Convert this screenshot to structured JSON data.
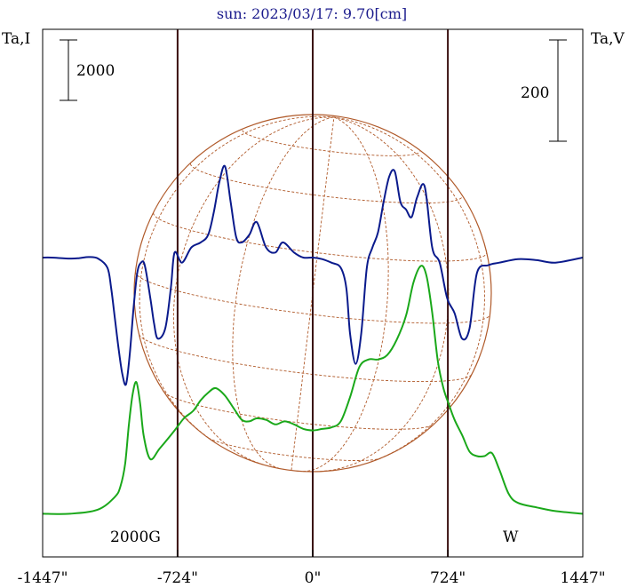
{
  "chart_data": {
    "type": "line",
    "title": "sun: 2023/03/17: 9.70[cm]",
    "left_axis_label": "Ta,I",
    "right_axis_label": "Ta,V",
    "left_scale_bar": "2000",
    "right_scale_bar": "200",
    "annotations": {
      "bottom_left": "2000G",
      "bottom_right": "W"
    },
    "x_ticks": [
      {
        "value": -1447,
        "label": "-1447\""
      },
      {
        "value": -724,
        "label": "-724\""
      },
      {
        "value": 0,
        "label": "0\""
      },
      {
        "value": 724,
        "label": "724\""
      },
      {
        "value": 1447,
        "label": "1447\""
      }
    ],
    "xlim": [
      -1447,
      1447
    ],
    "vertical_lines": [
      -724,
      0,
      724
    ],
    "ylim_I": [
      0,
      6000
    ],
    "ylim_V": [
      -300,
      300
    ],
    "colors": {
      "I": "#1aa81a",
      "V": "#0a1a8c",
      "globe": "#b05a2a",
      "vline": "#3a1010"
    },
    "series": [
      {
        "color_key": "I",
        "x": [
          -1447,
          -1300,
          -1150,
          -1060,
          -1030,
          -1005,
          -985,
          -965,
          -945,
          -925,
          -905,
          -870,
          -820,
          -740,
          -690,
          -640,
          -600,
          -560,
          -520,
          -470,
          -420,
          -380,
          -340,
          -300,
          -250,
          -200,
          -150,
          -100,
          -50,
          0,
          50,
          100,
          150,
          200,
          250,
          300,
          350,
          400,
          450,
          500,
          540,
          580,
          610,
          640,
          670,
          700,
          730,
          760,
          800,
          840,
          880,
          920,
          960,
          1000,
          1050,
          1100,
          1200,
          1300,
          1447
        ],
        "y": [
          340,
          340,
          480,
          900,
          1250,
          2000,
          3300,
          4300,
          4700,
          4000,
          2900,
          2150,
          2500,
          3100,
          3500,
          3750,
          4100,
          4350,
          4500,
          4250,
          3800,
          3450,
          3400,
          3500,
          3450,
          3300,
          3400,
          3300,
          3150,
          3100,
          3150,
          3200,
          3400,
          4200,
          5200,
          5450,
          5450,
          5600,
          6100,
          6900,
          8000,
          8550,
          8200,
          7000,
          5400,
          4500,
          3950,
          3450,
          2950,
          2400,
          2250,
          2250,
          2350,
          1800,
          1000,
          700,
          550,
          430,
          340
        ]
      },
      {
        "color_key": "V",
        "x": [
          -1447,
          -1400,
          -1300,
          -1250,
          -1200,
          -1150,
          -1100,
          -1080,
          -1060,
          -1040,
          -1020,
          -1000,
          -980,
          -960,
          -940,
          -920,
          -900,
          -870,
          -850,
          -830,
          -790,
          -760,
          -740,
          -700,
          -650,
          -600,
          -560,
          -530,
          -500,
          -470,
          -440,
          -410,
          -380,
          -340,
          -300,
          -250,
          -200,
          -160,
          -100,
          -50,
          0,
          50,
          100,
          150,
          180,
          200,
          230,
          260,
          290,
          320,
          350,
          380,
          410,
          440,
          470,
          500,
          530,
          560,
          600,
          640,
          680,
          720,
          760,
          800,
          840,
          880,
          940,
          1000,
          1100,
          1200,
          1300,
          1447
        ],
        "y": [
          0,
          0,
          -2,
          -1,
          1,
          -2,
          -20,
          -60,
          -120,
          -180,
          -230,
          -250,
          -190,
          -100,
          -30,
          -10,
          -15,
          -80,
          -130,
          -160,
          -140,
          -60,
          10,
          -10,
          20,
          30,
          45,
          90,
          150,
          180,
          110,
          40,
          30,
          45,
          70,
          20,
          10,
          30,
          10,
          0,
          0,
          -3,
          -10,
          -20,
          -60,
          -150,
          -210,
          -150,
          -20,
          20,
          50,
          110,
          160,
          170,
          110,
          95,
          80,
          120,
          140,
          20,
          -10,
          -80,
          -110,
          -160,
          -140,
          -30,
          -15,
          -10,
          -3,
          -5,
          -10,
          0
        ]
      }
    ]
  }
}
